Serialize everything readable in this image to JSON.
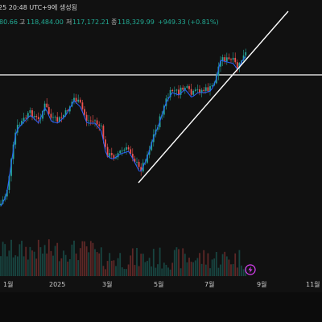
{
  "header": {
    "timestamp_text": "25 20:48 UTC+9에 생성됨",
    "open_fragment": "80.66",
    "high_label": "고",
    "high_value": "118,484.00",
    "low_label": "저",
    "low_value": "117,172.21",
    "close_label": "종",
    "close_value": "118,329.99",
    "change_text": "+949.33 (+0.81%)"
  },
  "colors": {
    "background": "#111111",
    "bull": "#26a69a",
    "bear": "#ef5350",
    "moving_average": "#2962ff",
    "trendline": "#ffffff",
    "header_values": "#22ab94",
    "axis_text": "#c9c9c9"
  },
  "icons": {
    "lightning": "lightning-icon"
  },
  "chart_data": {
    "type": "candlestick",
    "x_ticks": [
      "1월",
      "2025",
      "3월",
      "5월",
      "7월",
      "9월",
      "11월"
    ],
    "y_range_note": "",
    "horizontal_level": 108000,
    "price_series_description": "",
    "key_points": [
      {
        "x": "2024-10",
        "y": 62000
      },
      {
        "x": "2024-12",
        "y": 96000
      },
      {
        "x": "2025-01",
        "y": 104000
      },
      {
        "x": "2025-03",
        "y": 82000
      },
      {
        "x": "2025-04",
        "y": 77000
      },
      {
        "x": "2025-05",
        "y": 103000
      },
      {
        "x": "2025-06",
        "y": 108000
      },
      {
        "x": "2025-07",
        "y": 118000
      },
      {
        "x": "2025-08",
        "y": 118300
      }
    ],
    "trendline": {
      "from": {
        "x": "2025-04-08",
        "y": 77000
      },
      "to": {
        "x": "2025-10-01",
        "y": 125000
      }
    }
  }
}
